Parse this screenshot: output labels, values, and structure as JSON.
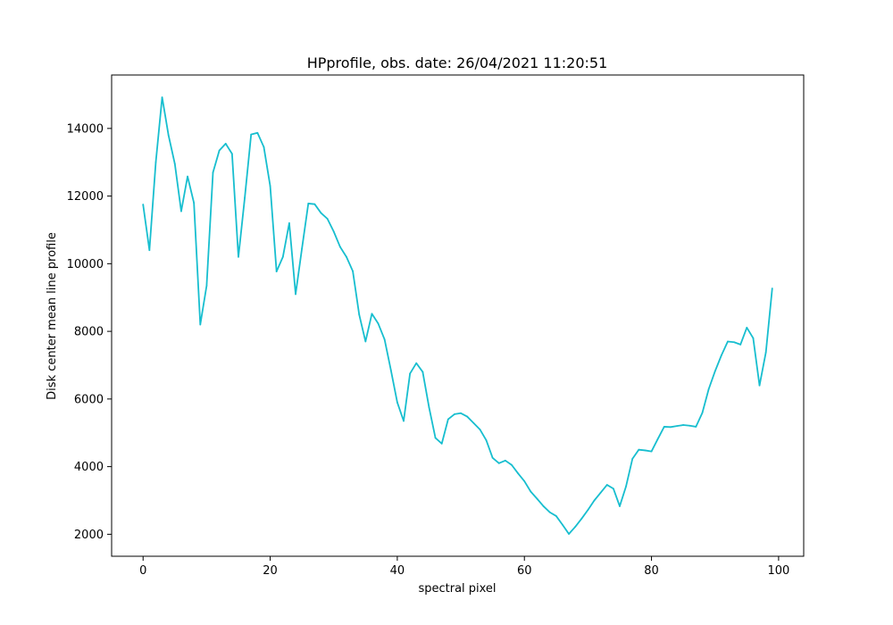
{
  "chart_data": {
    "type": "line",
    "title": "HPprofile, obs. date: 26/04/2021 11:20:51",
    "xlabel": "spectral pixel",
    "ylabel": "Disk center mean line profile",
    "xlim": [
      -4.95,
      103.95
    ],
    "ylim": [
      1350,
      15580
    ],
    "xticks": [
      0,
      20,
      40,
      60,
      80,
      100
    ],
    "yticks": [
      2000,
      4000,
      6000,
      8000,
      10000,
      12000,
      14000
    ],
    "grid": false,
    "series": [
      {
        "color": "#17becf",
        "x": [
          0,
          1,
          2,
          3,
          4,
          5,
          6,
          7,
          8,
          9,
          10,
          11,
          12,
          13,
          14,
          15,
          16,
          17,
          18,
          19,
          20,
          21,
          22,
          23,
          24,
          25,
          26,
          27,
          28,
          29,
          30,
          31,
          32,
          33,
          34,
          35,
          36,
          37,
          38,
          39,
          40,
          41,
          42,
          43,
          44,
          45,
          46,
          47,
          48,
          49,
          50,
          51,
          52,
          53,
          54,
          55,
          56,
          57,
          58,
          59,
          60,
          61,
          62,
          63,
          64,
          65,
          66,
          67,
          68,
          69,
          70,
          71,
          72,
          73,
          74,
          75,
          76,
          77,
          78,
          79,
          80,
          81,
          82,
          83,
          84,
          85,
          86,
          87,
          88,
          89,
          90,
          91,
          92,
          93,
          94,
          95,
          96,
          97,
          98,
          99
        ],
        "values": [
          11750,
          10400,
          13000,
          14920,
          13800,
          12950,
          11550,
          12580,
          11800,
          8200,
          9350,
          12700,
          13350,
          13550,
          13250,
          10200,
          11950,
          13820,
          13870,
          13450,
          12300,
          9770,
          10200,
          11200,
          9100,
          10450,
          11780,
          11760,
          11500,
          11330,
          10950,
          10500,
          10200,
          9780,
          8500,
          7700,
          8520,
          8230,
          7760,
          6850,
          5900,
          5350,
          6750,
          7060,
          6800,
          5750,
          4850,
          4680,
          5400,
          5550,
          5580,
          5480,
          5290,
          5100,
          4780,
          4260,
          4100,
          4180,
          4050,
          3800,
          3570,
          3260,
          3050,
          2830,
          2650,
          2540,
          2280,
          2010,
          2220,
          2460,
          2720,
          3000,
          3230,
          3460,
          3350,
          2830,
          3420,
          4230,
          4500,
          4480,
          4450,
          4820,
          5180,
          5170,
          5200,
          5230,
          5210,
          5180,
          5590,
          6290,
          6820,
          7290,
          7700,
          7680,
          7610,
          8110,
          7800,
          6400,
          7380,
          9270
        ]
      }
    ]
  }
}
